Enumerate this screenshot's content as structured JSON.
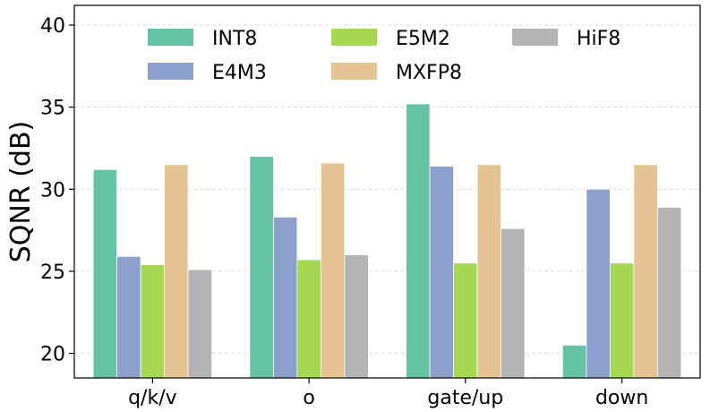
{
  "chart_data": {
    "type": "bar",
    "title": "",
    "xlabel": "",
    "ylabel": "SQNR (dB)",
    "ylim": [
      18.5,
      41.2
    ],
    "yticks": [
      20,
      25,
      30,
      35,
      40
    ],
    "grid": "horizontal-dashed",
    "legend_position": "top",
    "categories": [
      "q/k/v",
      "o",
      "gate/up",
      "down"
    ],
    "series": [
      {
        "name": "INT8",
        "color": "#66c2a5",
        "values": [
          31.2,
          32.0,
          35.2,
          20.5
        ]
      },
      {
        "name": "E4M3",
        "color": "#8da0cb",
        "values": [
          25.9,
          28.3,
          31.4,
          30.0
        ]
      },
      {
        "name": "E5M2",
        "color": "#a6d854",
        "values": [
          25.4,
          25.7,
          25.5,
          25.5
        ]
      },
      {
        "name": "MXFP8",
        "color": "#e5c494",
        "values": [
          31.5,
          31.6,
          31.5,
          31.5
        ]
      },
      {
        "name": "HiF8",
        "color": "#b3b3b3",
        "values": [
          25.1,
          26.0,
          27.6,
          28.9
        ]
      }
    ]
  }
}
